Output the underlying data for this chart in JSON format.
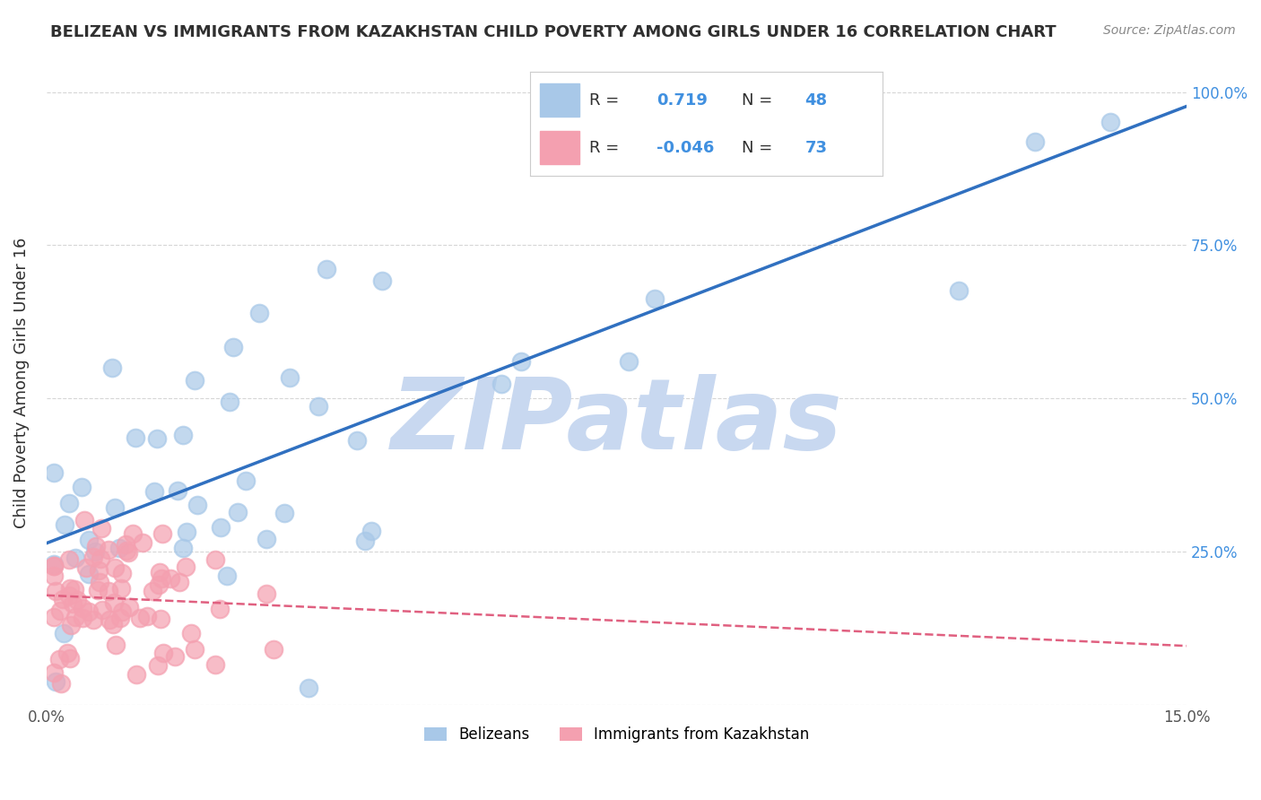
{
  "title": "BELIZEAN VS IMMIGRANTS FROM KAZAKHSTAN CHILD POVERTY AMONG GIRLS UNDER 16 CORRELATION CHART",
  "source": "Source: ZipAtlas.com",
  "ylabel": "Child Poverty Among Girls Under 16",
  "xlim": [
    0.0,
    0.15
  ],
  "ylim": [
    0.0,
    1.05
  ],
  "belizean_R": 0.719,
  "belizean_N": 48,
  "kazakh_R": -0.046,
  "kazakh_N": 73,
  "belizean_color": "#a8c8e8",
  "kazakh_color": "#f4a0b0",
  "trend_blue": "#3070c0",
  "trend_pink": "#e06080",
  "watermark_text": "ZIPatlas",
  "watermark_color": "#c8d8f0",
  "background_color": "#ffffff",
  "grid_color": "#cccccc",
  "title_color": "#303030",
  "legend_R_color": "#4090e0",
  "legend_N_color": "#4090e0"
}
